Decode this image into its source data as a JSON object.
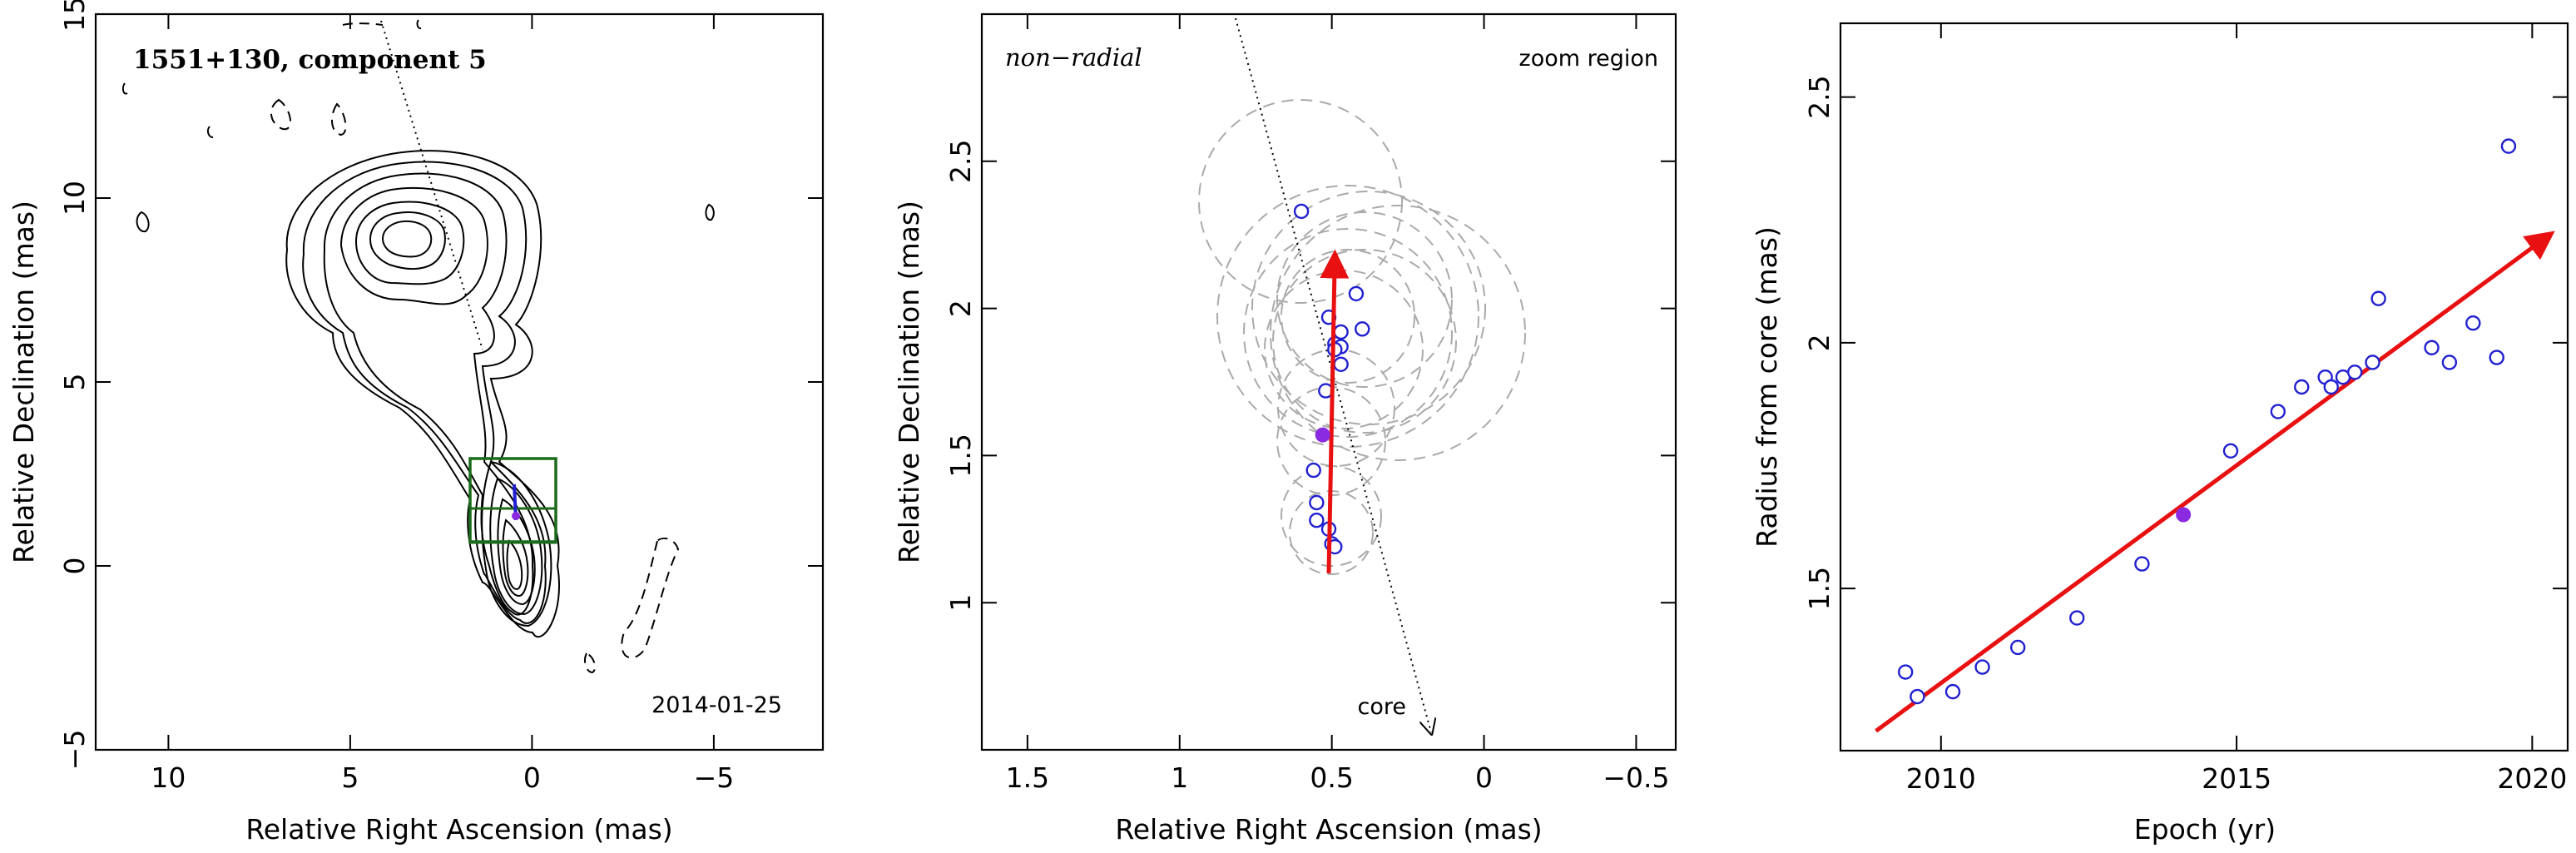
{
  "colors": {
    "axis": "#000000",
    "contour": "#000000",
    "box": "#1a6b1a",
    "marker": "#2020d0",
    "highlight": "#8a2be2",
    "arrow": "#e81010",
    "ghost": "#aaaaaa"
  },
  "chart_data": [
    {
      "type": "contour",
      "title": "1551+130, component 5",
      "xlabel": "Relative Right Ascension (mas)",
      "ylabel": "Relative Declination (mas)",
      "xlim": [
        12,
        -8
      ],
      "ylim": [
        -5,
        15
      ],
      "xticks": [
        10,
        5,
        0,
        -5
      ],
      "yticks": [
        -5,
        0,
        5,
        10,
        15
      ],
      "annotation": "2014-01-25",
      "contour_levels": 12,
      "peak": [
        0.1,
        0.6
      ],
      "jet_component": [
        3.2,
        9.0
      ]
    },
    {
      "type": "scatter",
      "annotation_left": "non−radial",
      "annotation_right": "zoom region",
      "core_label": "core",
      "xlabel": "Relative Right Ascension (mas)",
      "ylabel": "Relative Declination (mas)",
      "xlim": [
        1.65,
        -0.63
      ],
      "ylim": [
        0.5,
        3.0
      ],
      "xticks": [
        1.5,
        1,
        0.5,
        0,
        -0.5
      ],
      "xtick_labels": [
        "1.5",
        "1",
        "0.5",
        "0",
        "−0.5"
      ],
      "yticks": [
        1,
        1.5,
        2,
        2.5
      ],
      "points": [
        {
          "x": 0.6,
          "y": 2.33
        },
        {
          "x": 0.42,
          "y": 2.05
        },
        {
          "x": 0.51,
          "y": 1.97
        },
        {
          "x": 0.4,
          "y": 1.93
        },
        {
          "x": 0.47,
          "y": 1.92
        },
        {
          "x": 0.49,
          "y": 1.88
        },
        {
          "x": 0.47,
          "y": 1.87
        },
        {
          "x": 0.49,
          "y": 1.86
        },
        {
          "x": 0.47,
          "y": 1.81
        },
        {
          "x": 0.52,
          "y": 1.72
        },
        {
          "x": 0.56,
          "y": 1.45
        },
        {
          "x": 0.55,
          "y": 1.34
        },
        {
          "x": 0.55,
          "y": 1.28
        },
        {
          "x": 0.51,
          "y": 1.25
        },
        {
          "x": 0.5,
          "y": 1.2
        },
        {
          "x": 0.49,
          "y": 1.19
        }
      ],
      "highlighted_point": {
        "x": 0.53,
        "y": 1.57
      },
      "arrow": {
        "from": [
          0.51,
          1.1
        ],
        "to": [
          0.49,
          2.18
        ]
      }
    },
    {
      "type": "scatter",
      "xlabel": "Epoch (yr)",
      "ylabel": "Radius from core (mas)",
      "xlim": [
        2008.3,
        2020.6
      ],
      "ylim": [
        1.17,
        2.65
      ],
      "xticks": [
        2010,
        2015,
        2020
      ],
      "yticks": [
        1.5,
        2,
        2.5
      ],
      "points": [
        {
          "x": 2009.4,
          "y": 1.33
        },
        {
          "x": 2009.6,
          "y": 1.28
        },
        {
          "x": 2010.2,
          "y": 1.29
        },
        {
          "x": 2010.7,
          "y": 1.34
        },
        {
          "x": 2011.3,
          "y": 1.38
        },
        {
          "x": 2012.3,
          "y": 1.44
        },
        {
          "x": 2013.4,
          "y": 1.55
        },
        {
          "x": 2014.9,
          "y": 1.78
        },
        {
          "x": 2015.7,
          "y": 1.86
        },
        {
          "x": 2016.1,
          "y": 1.91
        },
        {
          "x": 2016.5,
          "y": 1.93
        },
        {
          "x": 2016.6,
          "y": 1.91
        },
        {
          "x": 2016.8,
          "y": 1.93
        },
        {
          "x": 2017.0,
          "y": 1.94
        },
        {
          "x": 2017.3,
          "y": 1.96
        },
        {
          "x": 2017.4,
          "y": 2.09
        },
        {
          "x": 2018.3,
          "y": 1.99
        },
        {
          "x": 2018.6,
          "y": 1.96
        },
        {
          "x": 2019.0,
          "y": 2.04
        },
        {
          "x": 2019.4,
          "y": 1.97
        },
        {
          "x": 2019.6,
          "y": 2.4
        }
      ],
      "highlighted_point": {
        "x": 2014.1,
        "y": 1.65
      },
      "fit_arrow": {
        "from": [
          2008.9,
          1.21
        ],
        "to": [
          2020.3,
          2.22
        ]
      }
    }
  ]
}
